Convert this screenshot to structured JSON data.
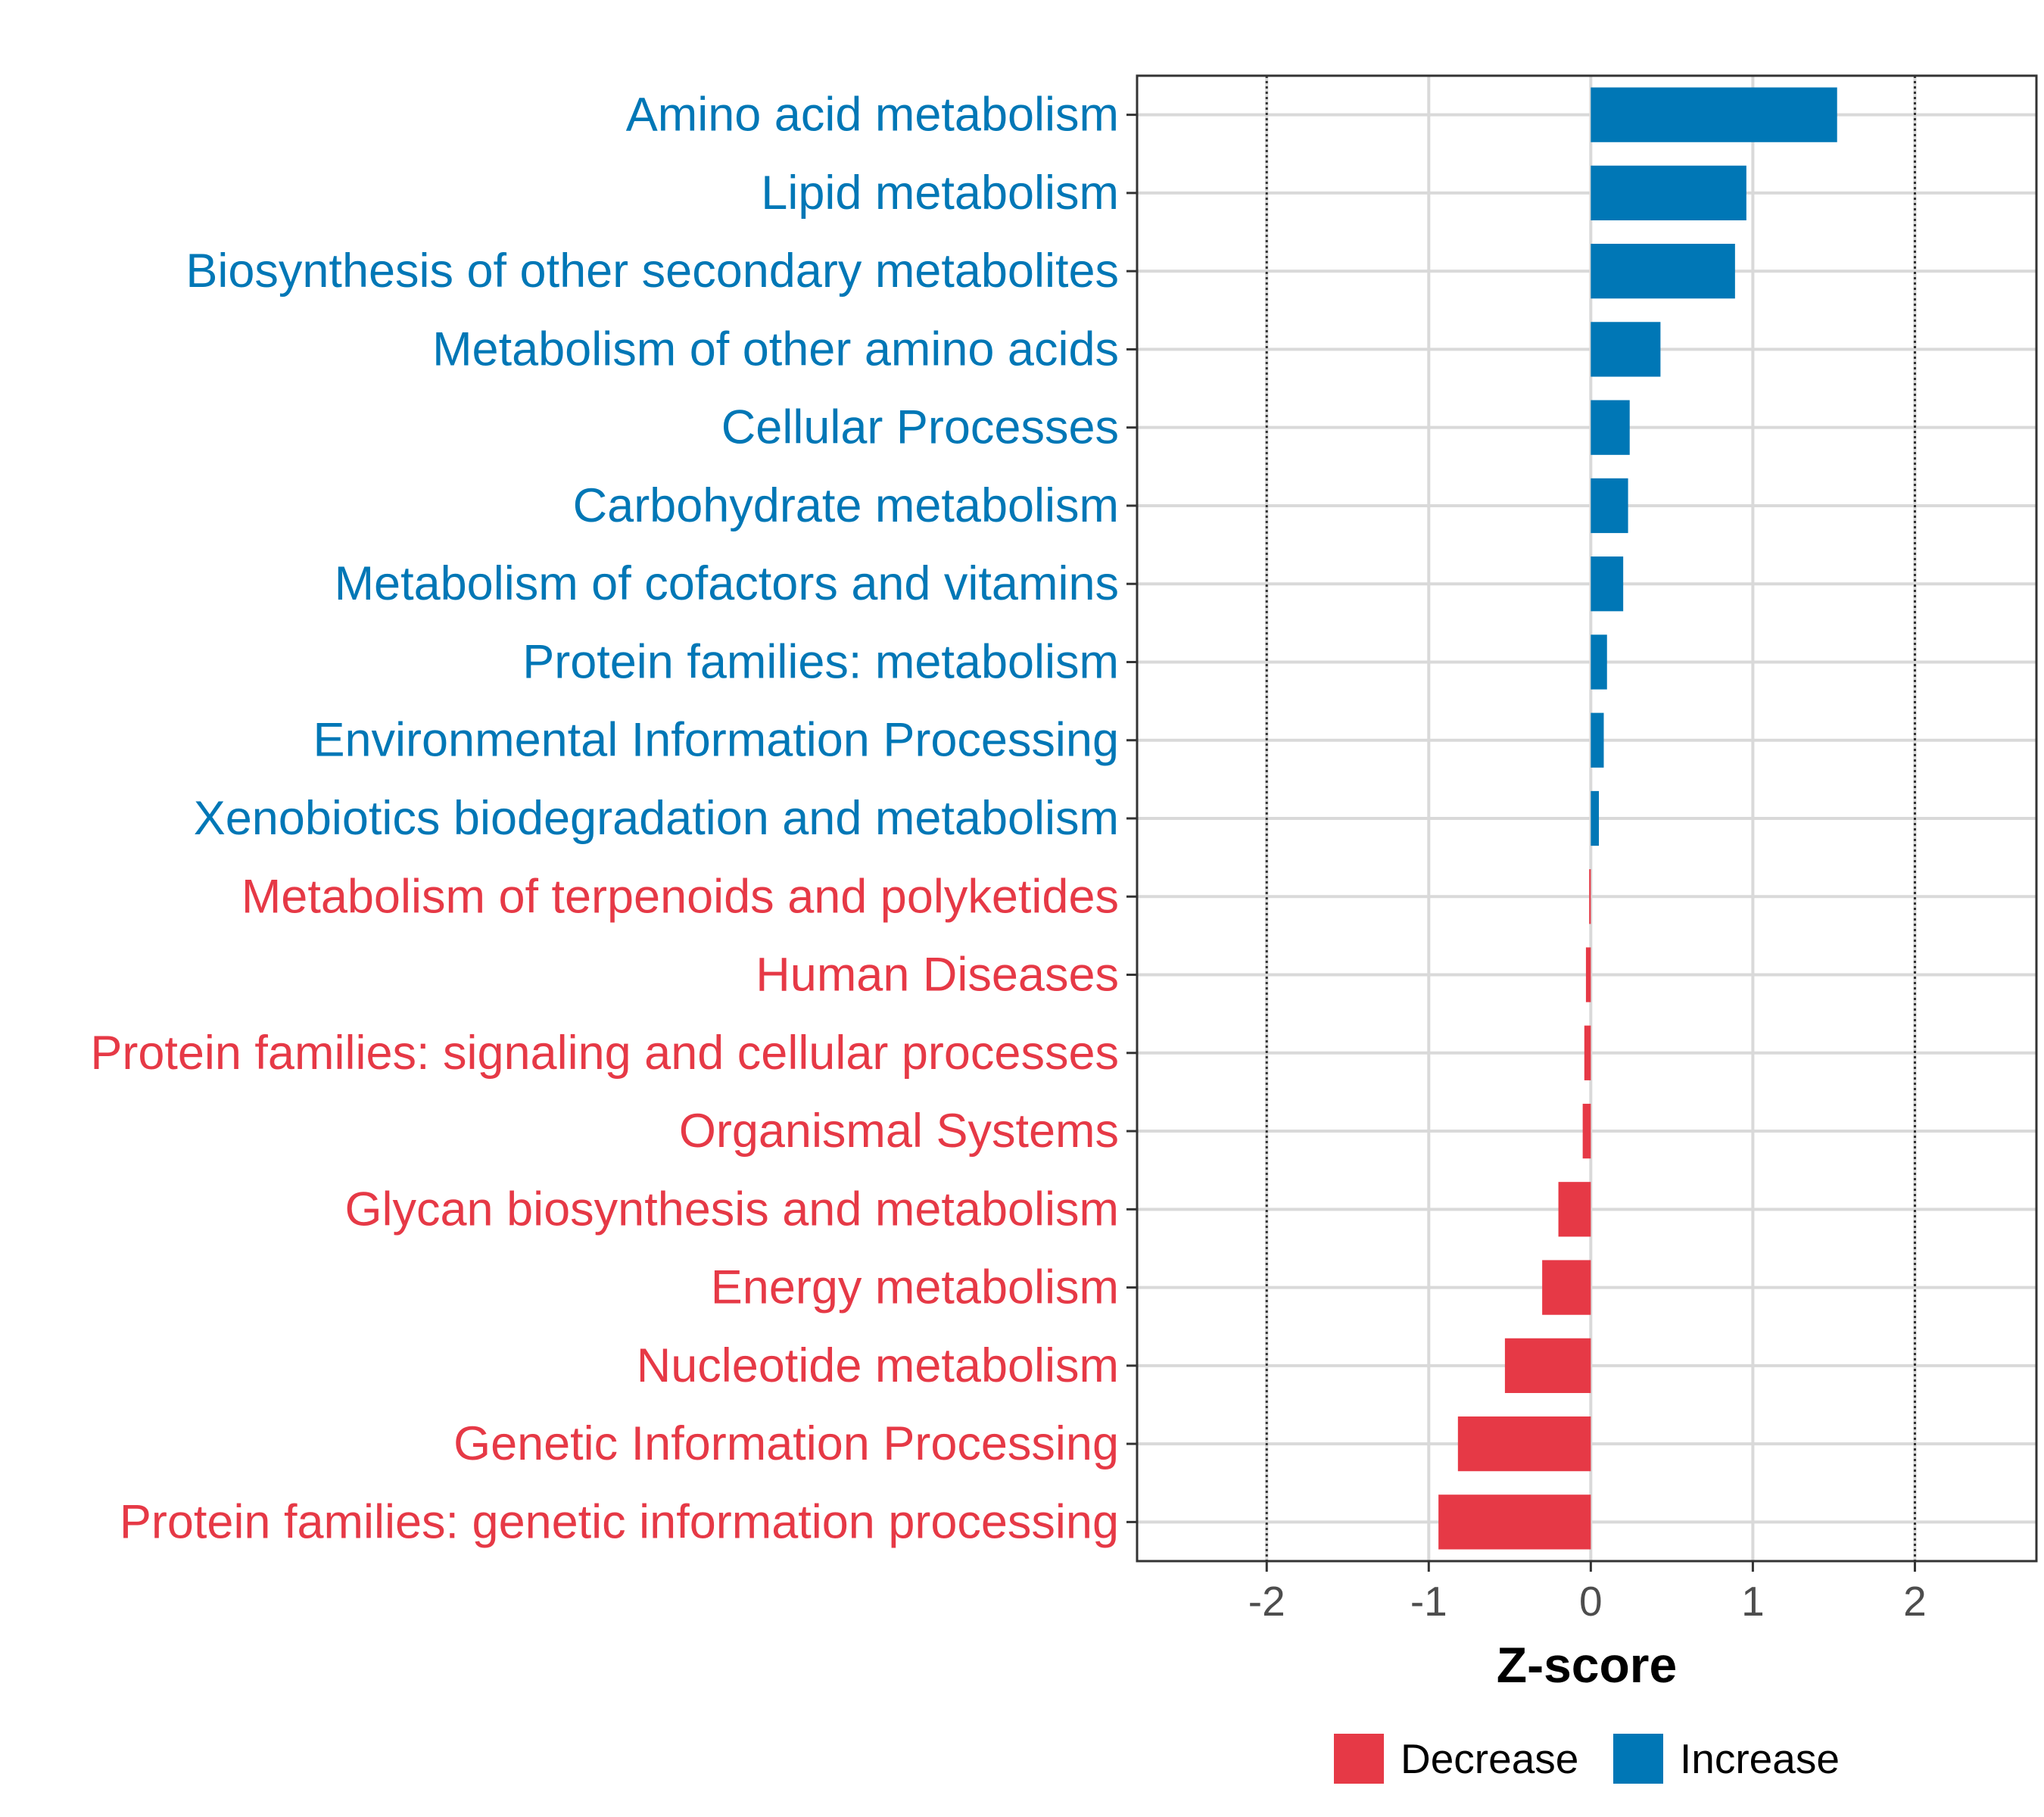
{
  "chart_data": {
    "type": "bar",
    "orientation": "horizontal",
    "categories": [
      "Amino acid metabolism",
      "Lipid metabolism",
      "Biosynthesis of other secondary metabolites",
      "Metabolism of other amino acids",
      "Cellular Processes",
      "Carbohydrate metabolism",
      "Metabolism of cofactors and vitamins",
      "Protein families: metabolism",
      "Environmental Information Processing",
      "Xenobiotics biodegradation and metabolism",
      "Metabolism of terpenoids and polyketides",
      "Human Diseases",
      "Protein families: signaling and cellular processes",
      "Organismal Systems",
      "Glycan biosynthesis and metabolism",
      "Energy metabolism",
      "Nucleotide metabolism",
      "Genetic Information Processing",
      "Protein families: genetic information processing"
    ],
    "values": [
      1.52,
      0.96,
      0.89,
      0.43,
      0.24,
      0.23,
      0.2,
      0.1,
      0.08,
      0.05,
      -0.01,
      -0.03,
      -0.04,
      -0.05,
      -0.2,
      -0.3,
      -0.53,
      -0.82,
      -0.94
    ],
    "groups": [
      "Increase",
      "Increase",
      "Increase",
      "Increase",
      "Increase",
      "Increase",
      "Increase",
      "Increase",
      "Increase",
      "Increase",
      "Decrease",
      "Decrease",
      "Decrease",
      "Decrease",
      "Decrease",
      "Decrease",
      "Decrease",
      "Decrease",
      "Decrease"
    ],
    "xlabel": "Z-score",
    "ylabel": "",
    "xlim": [
      -2.8,
      2.75
    ],
    "xticks": [
      -2,
      -1,
      0,
      1,
      2
    ],
    "xtick_labels": [
      "-2",
      "-1",
      "0",
      "1",
      "2"
    ],
    "reference_lines": [
      -2,
      2
    ],
    "legend": {
      "position": "bottom",
      "items": [
        {
          "label": "Decrease",
          "color": "#e63946"
        },
        {
          "label": "Increase",
          "color": "#0077b6"
        }
      ]
    },
    "colors": {
      "Increase": "#0077b6",
      "Decrease": "#e63946"
    },
    "grid": true
  }
}
